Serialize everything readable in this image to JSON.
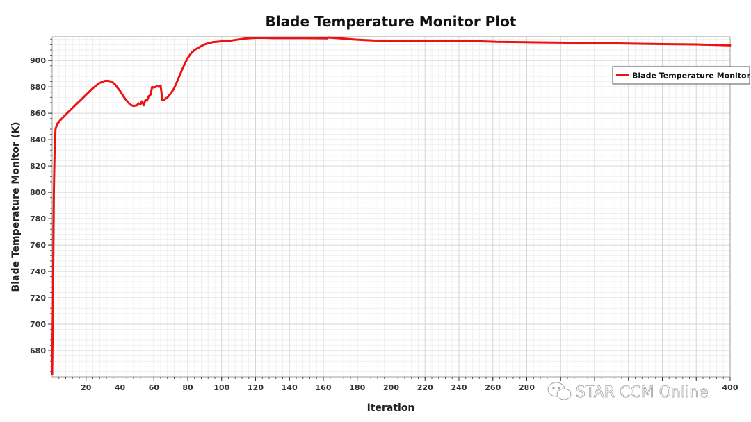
{
  "chart_data": {
    "type": "line",
    "title": "Blade Temperature Monitor Plot",
    "xlabel": "Iteration",
    "ylabel": "Blade Temperature Monitor (K)",
    "xlim": [
      0,
      400
    ],
    "ylim": [
      660,
      918
    ],
    "x_ticks": [
      20,
      40,
      60,
      80,
      100,
      120,
      140,
      160,
      180,
      200,
      220,
      240,
      260,
      280,
      300,
      320,
      340,
      360,
      380,
      400
    ],
    "x_tick_labels": [
      "20",
      "40",
      "60",
      "80",
      "100",
      "120",
      "140",
      "160",
      "180",
      "200",
      "220",
      "240",
      "260",
      "280",
      "",
      "",
      "",
      "",
      "",
      "400"
    ],
    "y_ticks": [
      680,
      700,
      720,
      740,
      760,
      780,
      800,
      820,
      840,
      860,
      880,
      900
    ],
    "grid": true,
    "legend_position": "top-right",
    "series": [
      {
        "name": "Blade Temperature Monitor",
        "color": "#ee1111",
        "x": [
          0,
          0.5,
          1,
          1.5,
          2,
          3,
          5,
          8,
          12,
          16,
          20,
          24,
          28,
          31,
          33,
          35,
          37,
          40,
          43,
          46,
          48,
          50,
          51,
          52,
          53,
          54,
          55,
          56,
          57,
          58,
          59,
          60,
          61,
          62,
          63,
          64,
          65,
          66,
          68,
          70,
          72,
          74,
          76,
          78,
          80,
          82,
          84,
          86,
          88,
          90,
          92,
          95,
          100,
          105,
          110,
          115,
          120,
          125,
          130,
          140,
          150,
          160,
          162,
          163,
          165,
          168,
          172,
          180,
          190,
          200,
          220,
          240,
          250,
          258,
          262,
          280,
          300,
          320,
          340,
          360,
          380,
          400
        ],
        "y": [
          662,
          720,
          800,
          835,
          848,
          852,
          855,
          859,
          864,
          869,
          874,
          879,
          883,
          884.5,
          884.6,
          884,
          882,
          877,
          871,
          866.5,
          865.5,
          866,
          867.5,
          866.5,
          869,
          866,
          870,
          869.5,
          873,
          874,
          880,
          879.5,
          880,
          880.5,
          880,
          881,
          870,
          870.2,
          872,
          875,
          879,
          885,
          891,
          897,
          902,
          905.5,
          908,
          909.5,
          911,
          912.3,
          913,
          914,
          914.6,
          915,
          916,
          916.8,
          917.2,
          917.2,
          917,
          917,
          917,
          916.9,
          916.8,
          917.5,
          917.3,
          917,
          916.6,
          915.8,
          915.2,
          915,
          915,
          914.9,
          914.7,
          914.4,
          914.2,
          913.9,
          913.6,
          913.3,
          912.9,
          912.5,
          912.2,
          911.5
        ]
      }
    ]
  },
  "watermark": {
    "text": "STAR CCM Online",
    "icon": "wechat-icon"
  }
}
